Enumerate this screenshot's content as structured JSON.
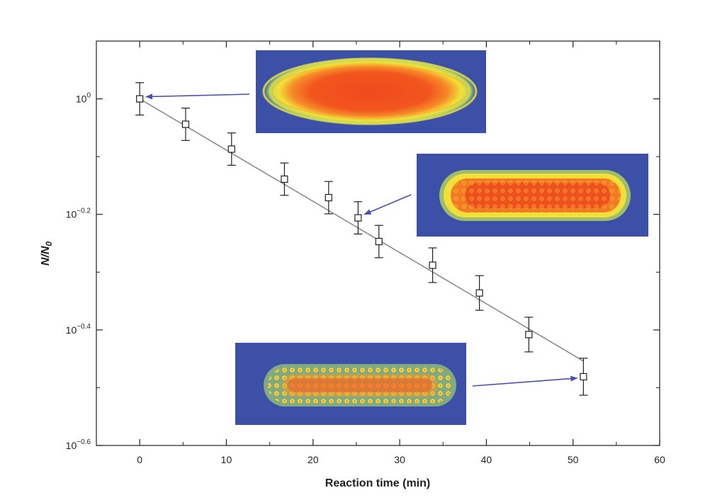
{
  "chart_data": {
    "type": "scatter",
    "xlabel": "Reaction time (min)",
    "ylabel": "N/N",
    "ylabel_subscript": "0",
    "xlim": [
      -5,
      60
    ],
    "ylim_log10": [
      -0.6,
      0.1
    ],
    "y_scale": "log",
    "grid": false,
    "x_ticks": [
      {
        "value": 0,
        "label": "0"
      },
      {
        "value": 10,
        "label": "10"
      },
      {
        "value": 20,
        "label": "20"
      },
      {
        "value": 30,
        "label": "30"
      },
      {
        "value": 40,
        "label": "40"
      },
      {
        "value": 50,
        "label": "50"
      },
      {
        "value": 60,
        "label": "60"
      }
    ],
    "y_ticks": [
      {
        "exp": 0,
        "base": "10",
        "sup": "0"
      },
      {
        "exp": -0.2,
        "base": "10",
        "sup": "−0.2"
      },
      {
        "exp": -0.4,
        "base": "10",
        "sup": "−0.4"
      },
      {
        "exp": -0.6,
        "base": "10",
        "sup": "−0.6"
      }
    ],
    "series": [
      {
        "marker": "open-square",
        "x": [
          0,
          5.3,
          10.6,
          16.7,
          21.8,
          25.2,
          27.6,
          33.8,
          39.2,
          44.9,
          51.2
        ],
        "log10_y": [
          0.0,
          -0.044,
          -0.087,
          -0.139,
          -0.171,
          -0.206,
          -0.247,
          -0.288,
          -0.336,
          -0.408,
          -0.481
        ],
        "log10_err": [
          0.028,
          0.028,
          0.028,
          0.028,
          0.028,
          0.028,
          0.028,
          0.03,
          0.03,
          0.03,
          0.032
        ]
      }
    ],
    "fit_line": {
      "x": [
        0,
        51.2
      ],
      "log10_y": [
        0.0,
        -0.454
      ]
    },
    "colors": {
      "axis": "#231f20",
      "marker": "#231f20",
      "fit": "#8c8c8c",
      "arrow": "#4a4fb0",
      "image_bg": "#3c50a8"
    }
  },
  "insets": [
    {
      "icon": "elongated-ion-crystal-image",
      "arrow_to_point": 0
    },
    {
      "icon": "elongated-ion-crystal-image",
      "arrow_to_point": 5
    },
    {
      "icon": "elongated-ion-crystal-image",
      "arrow_to_point": 10
    }
  ]
}
